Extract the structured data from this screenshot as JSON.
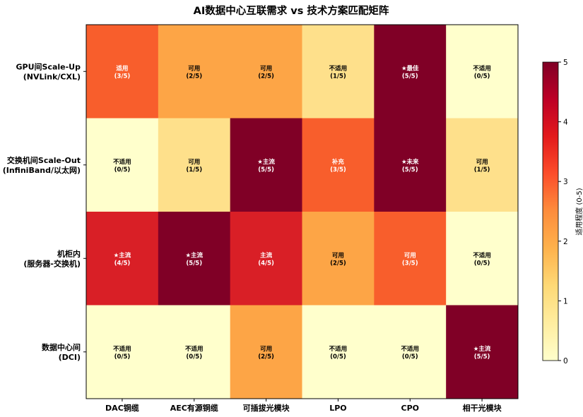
{
  "chart_data": {
    "type": "heatmap",
    "title": "AI数据中心互联需求 vs 技术方案匹配矩阵",
    "x_categories": [
      "DAC铜缆",
      "AEC有源铜缆",
      "可插拔光模块",
      "LPO",
      "CPO",
      "相干光模块"
    ],
    "y_categories": [
      [
        "GPU间Scale-Up",
        "(NVLink/CXL)"
      ],
      [
        "交换机间Scale-Out",
        "(InfiniBand/以太网)"
      ],
      [
        "机柜内",
        "(服务器-交换机)"
      ],
      [
        "数据中心间",
        "(DCI)"
      ]
    ],
    "values": [
      [
        3,
        2,
        2,
        1,
        5,
        0
      ],
      [
        0,
        1,
        5,
        3,
        5,
        1
      ],
      [
        4,
        5,
        4,
        2,
        3,
        0
      ],
      [
        0,
        0,
        2,
        0,
        0,
        5
      ]
    ],
    "labels": [
      [
        "适用",
        "可用",
        "可用",
        "不适用",
        "★最佳",
        "不适用"
      ],
      [
        "不适用",
        "可用",
        "★主流",
        "补充",
        "★未来",
        "可用"
      ],
      [
        "★主流",
        "★主流",
        "主流",
        "可用",
        "可用",
        "不适用"
      ],
      [
        "不适用",
        "不适用",
        "可用",
        "不适用",
        "不适用",
        "★主流"
      ]
    ],
    "value_labels": [
      [
        "(3/5)",
        "(2/5)",
        "(2/5)",
        "(1/5)",
        "(5/5)",
        "(0/5)"
      ],
      [
        "(0/5)",
        "(1/5)",
        "(5/5)",
        "(3/5)",
        "(5/5)",
        "(1/5)"
      ],
      [
        "(4/5)",
        "(5/5)",
        "(4/5)",
        "(2/5)",
        "(3/5)",
        "(0/5)"
      ],
      [
        "(0/5)",
        "(0/5)",
        "(2/5)",
        "(0/5)",
        "(0/5)",
        "(5/5)"
      ]
    ],
    "colormap": "YlOrRd",
    "vmin": 0,
    "vmax": 5,
    "colorbar_label": "适用程度 (0-5)",
    "colorbar_ticks": [
      0,
      1,
      2,
      3,
      4,
      5
    ],
    "colors": {
      "0": "#ffffcc",
      "1": "#fee08b",
      "2": "#fda546",
      "3": "#f85e2c",
      "4": "#d91f26",
      "5": "#800026"
    }
  }
}
